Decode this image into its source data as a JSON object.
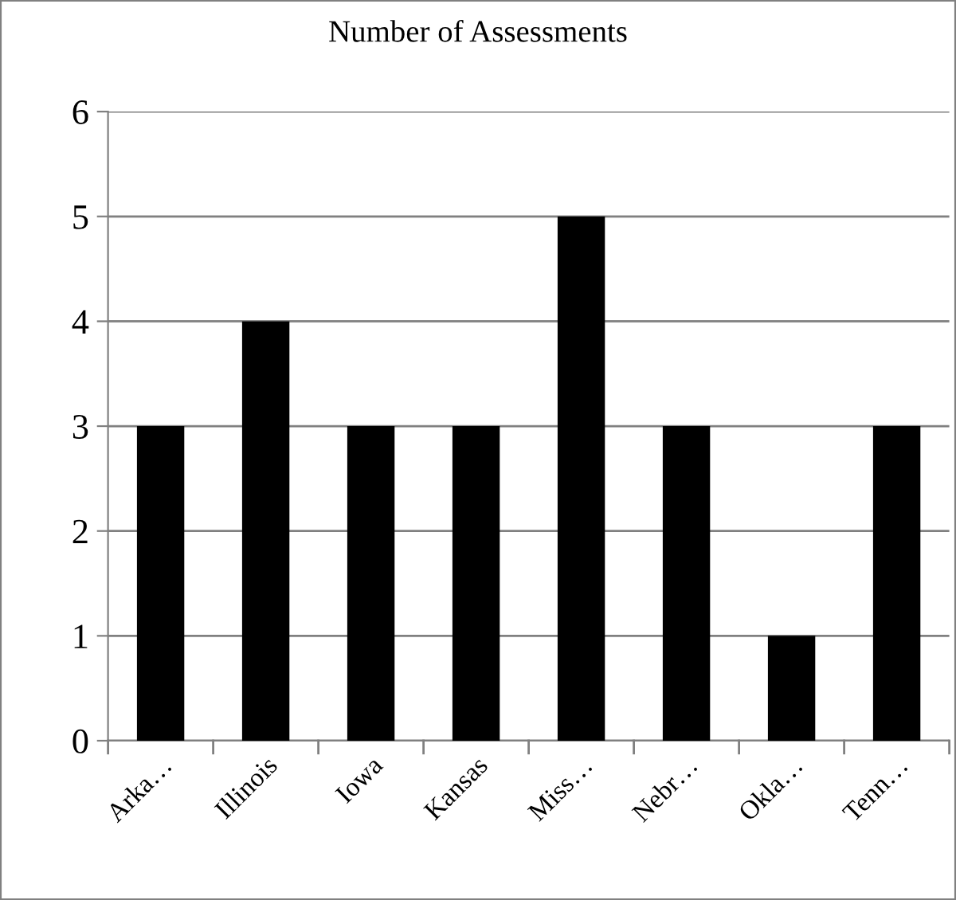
{
  "chart_data": {
    "type": "bar",
    "title": "Number of Assessments",
    "categories": [
      "Arka…",
      "Illinois",
      "Iowa",
      "Kansas",
      "Miss…",
      "Nebr…",
      "Okla…",
      "Tenn…"
    ],
    "values": [
      3,
      4,
      3,
      3,
      5,
      3,
      1,
      3
    ],
    "color": "#000000",
    "ylim": [
      0,
      6
    ],
    "yticks": [
      0,
      1,
      2,
      3,
      4,
      5,
      6
    ],
    "grid": "y",
    "legend": false
  }
}
